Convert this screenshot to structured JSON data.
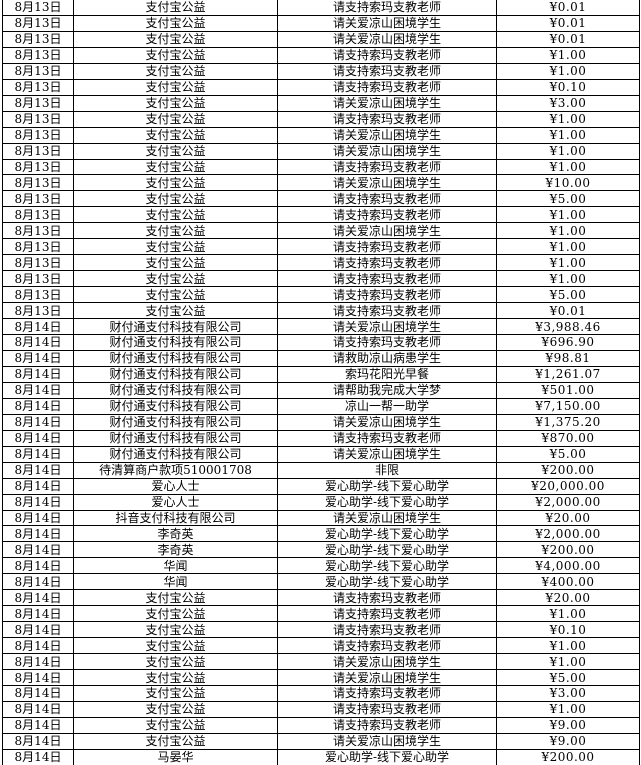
{
  "colors": {
    "background": "#ffffff",
    "grid_line": "#000000",
    "text": "#000000"
  },
  "table": {
    "rows": [
      {
        "date": "8月13日",
        "payer": "支付宝公益",
        "purpose": "请支持索玛支教老师",
        "amount": "¥0.01"
      },
      {
        "date": "8月13日",
        "payer": "支付宝公益",
        "purpose": "请关爱凉山困境学生",
        "amount": "¥0.01"
      },
      {
        "date": "8月13日",
        "payer": "支付宝公益",
        "purpose": "请关爱凉山困境学生",
        "amount": "¥0.01"
      },
      {
        "date": "8月13日",
        "payer": "支付宝公益",
        "purpose": "请支持索玛支教老师",
        "amount": "¥1.00"
      },
      {
        "date": "8月13日",
        "payer": "支付宝公益",
        "purpose": "请支持索玛支教老师",
        "amount": "¥1.00"
      },
      {
        "date": "8月13日",
        "payer": "支付宝公益",
        "purpose": "请支持索玛支教老师",
        "amount": "¥0.10"
      },
      {
        "date": "8月13日",
        "payer": "支付宝公益",
        "purpose": "请关爱凉山困境学生",
        "amount": "¥3.00"
      },
      {
        "date": "8月13日",
        "payer": "支付宝公益",
        "purpose": "请支持索玛支教老师",
        "amount": "¥1.00"
      },
      {
        "date": "8月13日",
        "payer": "支付宝公益",
        "purpose": "请关爱凉山困境学生",
        "amount": "¥1.00"
      },
      {
        "date": "8月13日",
        "payer": "支付宝公益",
        "purpose": "请关爱凉山困境学生",
        "amount": "¥1.00"
      },
      {
        "date": "8月13日",
        "payer": "支付宝公益",
        "purpose": "请支持索玛支教老师",
        "amount": "¥1.00"
      },
      {
        "date": "8月13日",
        "payer": "支付宝公益",
        "purpose": "请关爱凉山困境学生",
        "amount": "¥10.00"
      },
      {
        "date": "8月13日",
        "payer": "支付宝公益",
        "purpose": "请支持索玛支教老师",
        "amount": "¥5.00"
      },
      {
        "date": "8月13日",
        "payer": "支付宝公益",
        "purpose": "请支持索玛支教老师",
        "amount": "¥1.00"
      },
      {
        "date": "8月13日",
        "payer": "支付宝公益",
        "purpose": "请关爱凉山困境学生",
        "amount": "¥1.00"
      },
      {
        "date": "8月13日",
        "payer": "支付宝公益",
        "purpose": "请支持索玛支教老师",
        "amount": "¥1.00"
      },
      {
        "date": "8月13日",
        "payer": "支付宝公益",
        "purpose": "请支持索玛支教老师",
        "amount": "¥1.00"
      },
      {
        "date": "8月13日",
        "payer": "支付宝公益",
        "purpose": "请支持索玛支教老师",
        "amount": "¥1.00"
      },
      {
        "date": "8月13日",
        "payer": "支付宝公益",
        "purpose": "请支持索玛支教老师",
        "amount": "¥5.00"
      },
      {
        "date": "8月13日",
        "payer": "支付宝公益",
        "purpose": "请支持索玛支教老师",
        "amount": "¥0.01"
      },
      {
        "date": "8月14日",
        "payer": "财付通支付科技有限公司",
        "purpose": "请关爱凉山困境学生",
        "amount": "¥3,988.46"
      },
      {
        "date": "8月14日",
        "payer": "财付通支付科技有限公司",
        "purpose": "请支持索玛支教老师",
        "amount": "¥696.90"
      },
      {
        "date": "8月14日",
        "payer": "财付通支付科技有限公司",
        "purpose": "请救助凉山病患学生",
        "amount": "¥98.81"
      },
      {
        "date": "8月14日",
        "payer": "财付通支付科技有限公司",
        "purpose": "索玛花阳光早餐",
        "amount": "¥1,261.07"
      },
      {
        "date": "8月14日",
        "payer": "财付通支付科技有限公司",
        "purpose": "请帮助我完成大学梦",
        "amount": "¥501.00"
      },
      {
        "date": "8月14日",
        "payer": "财付通支付科技有限公司",
        "purpose": "凉山一帮一助学",
        "amount": "¥7,150.00"
      },
      {
        "date": "8月14日",
        "payer": "财付通支付科技有限公司",
        "purpose": "请关爱凉山困境学生",
        "amount": "¥1,375.20"
      },
      {
        "date": "8月14日",
        "payer": "财付通支付科技有限公司",
        "purpose": "请支持索玛支教老师",
        "amount": "¥870.00"
      },
      {
        "date": "8月14日",
        "payer": "财付通支付科技有限公司",
        "purpose": "请关爱凉山困境学生",
        "amount": "¥5.00"
      },
      {
        "date": "8月14日",
        "payer": "待清算商户款项510001708",
        "purpose": "非限",
        "amount": "¥200.00"
      },
      {
        "date": "8月14日",
        "payer": "爱心人士",
        "purpose": "爱心助学-线下爱心助学",
        "amount": "¥20,000.00"
      },
      {
        "date": "8月14日",
        "payer": "爱心人士",
        "purpose": "爱心助学-线下爱心助学",
        "amount": "¥2,000.00"
      },
      {
        "date": "8月14日",
        "payer": "抖音支付科技有限公司",
        "purpose": "请关爱凉山困境学生",
        "amount": "¥20.00"
      },
      {
        "date": "8月14日",
        "payer": "李奇英",
        "purpose": "爱心助学-线下爱心助学",
        "amount": "¥2,000.00"
      },
      {
        "date": "8月14日",
        "payer": "李奇英",
        "purpose": "爱心助学-线下爱心助学",
        "amount": "¥200.00"
      },
      {
        "date": "8月14日",
        "payer": "华闻",
        "purpose": "爱心助学-线下爱心助学",
        "amount": "¥4,000.00"
      },
      {
        "date": "8月14日",
        "payer": "华闻",
        "purpose": "爱心助学-线下爱心助学",
        "amount": "¥400.00"
      },
      {
        "date": "8月14日",
        "payer": "支付宝公益",
        "purpose": "请支持索玛支教老师",
        "amount": "¥20.00"
      },
      {
        "date": "8月14日",
        "payer": "支付宝公益",
        "purpose": "请支持索玛支教老师",
        "amount": "¥1.00"
      },
      {
        "date": "8月14日",
        "payer": "支付宝公益",
        "purpose": "请支持索玛支教老师",
        "amount": "¥0.10"
      },
      {
        "date": "8月14日",
        "payer": "支付宝公益",
        "purpose": "请支持索玛支教老师",
        "amount": "¥1.00"
      },
      {
        "date": "8月14日",
        "payer": "支付宝公益",
        "purpose": "请关爱凉山困境学生",
        "amount": "¥1.00"
      },
      {
        "date": "8月14日",
        "payer": "支付宝公益",
        "purpose": "请关爱凉山困境学生",
        "amount": "¥5.00"
      },
      {
        "date": "8月14日",
        "payer": "支付宝公益",
        "purpose": "请支持索玛支教老师",
        "amount": "¥3.00"
      },
      {
        "date": "8月14日",
        "payer": "支付宝公益",
        "purpose": "请支持索玛支教老师",
        "amount": "¥1.00"
      },
      {
        "date": "8月14日",
        "payer": "支付宝公益",
        "purpose": "请支持索玛支教老师",
        "amount": "¥9.00"
      },
      {
        "date": "8月14日",
        "payer": "支付宝公益",
        "purpose": "请关爱凉山困境学生",
        "amount": "¥9.00"
      },
      {
        "date": "8月14日",
        "payer": "马晏华",
        "purpose": "爱心助学-线下爱心助学",
        "amount": "¥200.00"
      }
    ]
  }
}
